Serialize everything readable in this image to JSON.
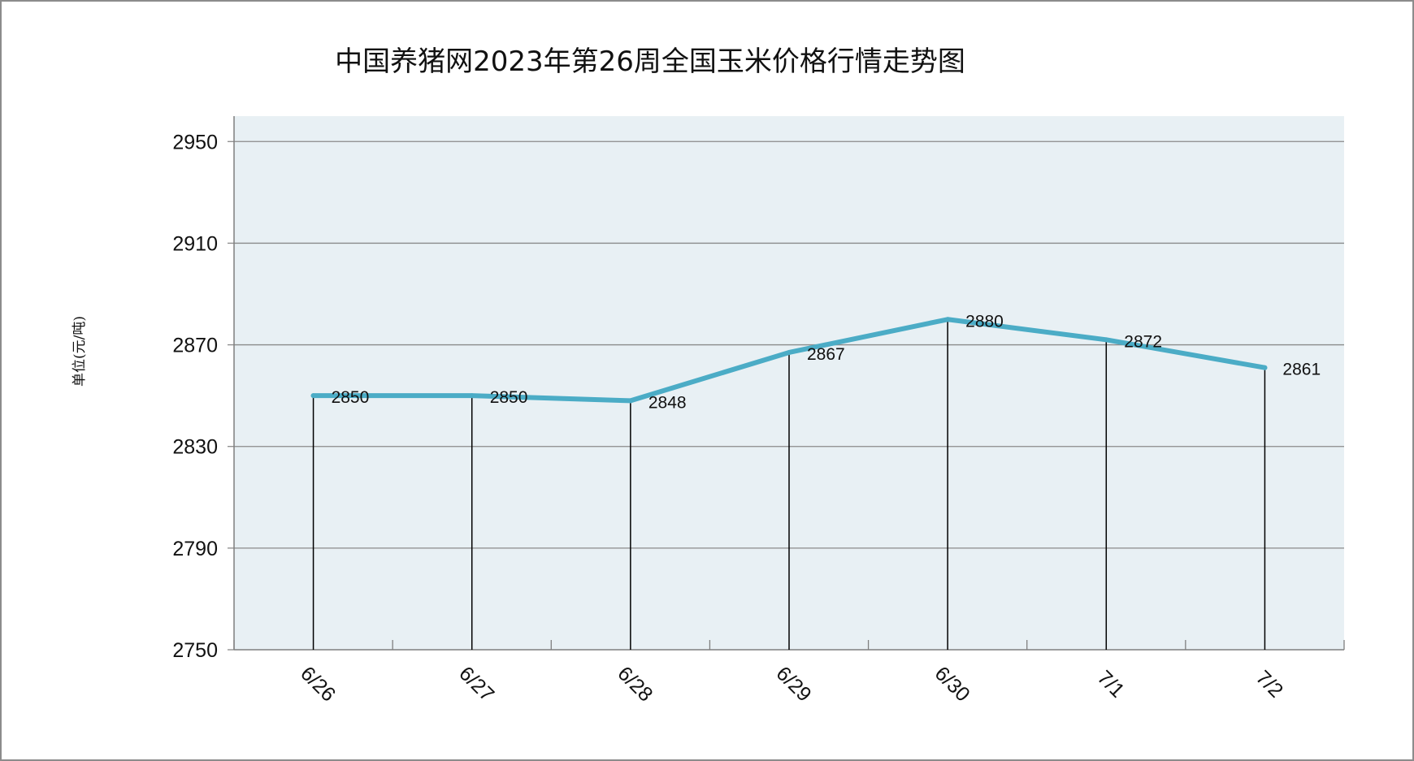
{
  "title": "中国养猪网2023年第26周全国玉米价格行情走势图",
  "chart_data": {
    "type": "line",
    "title": "中国养猪网2023年第26周全国玉米价格行情走势图",
    "ylabel": "单位(元/吨)",
    "xlabel": "",
    "categories": [
      "6/26",
      "6/27",
      "6/28",
      "6/29",
      "6/30",
      "7/1",
      "7/2"
    ],
    "series": [
      {
        "values": [
          2850,
          2850,
          2848,
          2867,
          2880,
          2872,
          2861
        ]
      }
    ],
    "data_labels": [
      "2850",
      "2850",
      "2848",
      "2867",
      "2880",
      "2872",
      "2861"
    ],
    "ylim": [
      2750,
      2960
    ],
    "yticks": [
      2750,
      2790,
      2830,
      2870,
      2910,
      2950
    ],
    "ytick_labels": [
      "2750",
      "2790",
      "2830",
      "2870",
      "2910",
      "2950"
    ],
    "grid": true,
    "drop_lines": true,
    "legend": "none",
    "colors": {
      "line": "#4bacc6",
      "plot_background": "#e8f0f4",
      "grid": "#8a8a8a",
      "drop_line": "#000000"
    }
  }
}
